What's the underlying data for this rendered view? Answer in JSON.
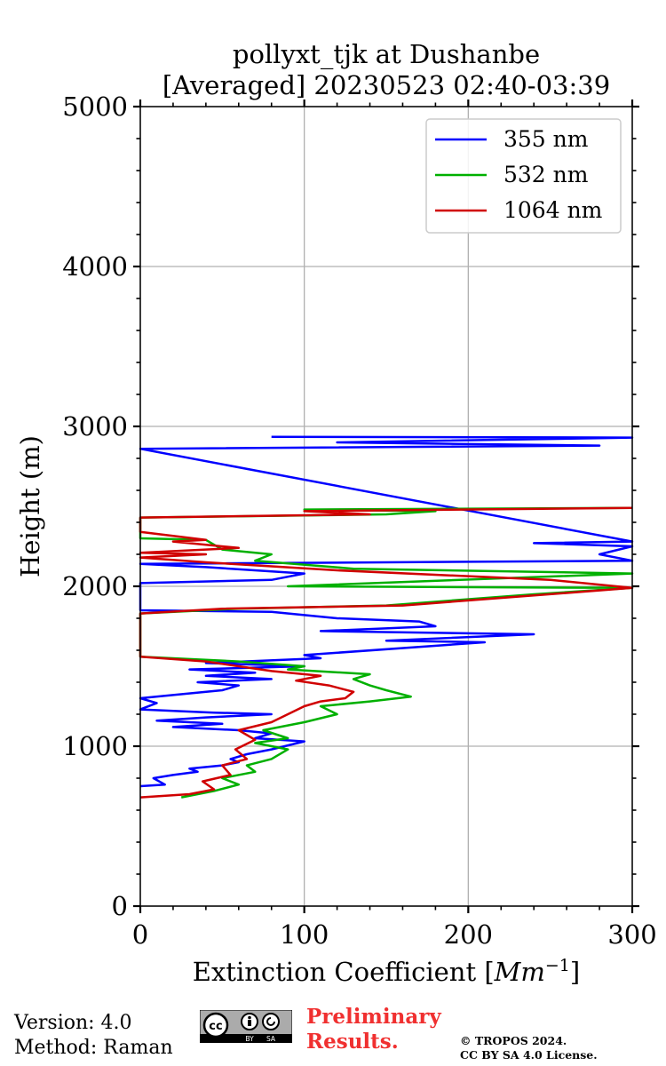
{
  "chart_data": {
    "type": "line",
    "title_line1": "pollyxt_tjk at Dushanbe",
    "title_line2": "[Averaged] 20230523 02:40-03:39",
    "xlabel_prefix": "Extinction Coefficient [",
    "xlabel_unit": "Mm",
    "xlabel_exp": "−1",
    "xlabel_suffix": "]",
    "ylabel": "Height (m)",
    "xlim": [
      0,
      300
    ],
    "ylim": [
      0,
      5000
    ],
    "x_ticks": [
      "0",
      "100",
      "200",
      "300"
    ],
    "y_ticks": [
      "0",
      "1000",
      "2000",
      "3000",
      "4000",
      "5000"
    ],
    "grid": true,
    "legend_position": "top-right",
    "series": [
      {
        "name": "355 nm",
        "color": "#0000ff",
        "points": [
          [
            0,
            750
          ],
          [
            15,
            760
          ],
          [
            8,
            800
          ],
          [
            20,
            820
          ],
          [
            35,
            840
          ],
          [
            30,
            860
          ],
          [
            50,
            880
          ],
          [
            60,
            900
          ],
          [
            55,
            920
          ],
          [
            65,
            950
          ],
          [
            80,
            980
          ],
          [
            100,
            1030
          ],
          [
            70,
            1050
          ],
          [
            80,
            1080
          ],
          [
            60,
            1100
          ],
          [
            20,
            1120
          ],
          [
            50,
            1140
          ],
          [
            10,
            1160
          ],
          [
            40,
            1180
          ],
          [
            80,
            1200
          ],
          [
            45,
            1210
          ],
          [
            0,
            1230
          ],
          [
            10,
            1270
          ],
          [
            0,
            1300
          ],
          [
            20,
            1320
          ],
          [
            50,
            1350
          ],
          [
            60,
            1380
          ],
          [
            35,
            1400
          ],
          [
            80,
            1420
          ],
          [
            40,
            1440
          ],
          [
            70,
            1460
          ],
          [
            30,
            1480
          ],
          [
            100,
            1500
          ],
          [
            40,
            1520
          ],
          [
            110,
            1550
          ],
          [
            100,
            1570
          ],
          [
            210,
            1650
          ],
          [
            150,
            1660
          ],
          [
            240,
            1700
          ],
          [
            110,
            1720
          ],
          [
            180,
            1750
          ],
          [
            170,
            1780
          ],
          [
            120,
            1800
          ],
          [
            80,
            1840
          ],
          [
            0,
            1850
          ],
          [
            0,
            2020
          ],
          [
            80,
            2040
          ],
          [
            100,
            2080
          ],
          [
            40,
            2120
          ],
          [
            0,
            2140
          ],
          [
            300,
            2160
          ],
          [
            280,
            2200
          ],
          [
            300,
            2250
          ],
          [
            240,
            2270
          ],
          [
            300,
            2280
          ],
          [
            0,
            2860
          ],
          [
            280,
            2880
          ],
          [
            120,
            2900
          ],
          [
            300,
            2930
          ],
          [
            80,
            2935
          ]
        ]
      },
      {
        "name": "532 nm",
        "color": "#00b000",
        "points": [
          [
            25,
            680
          ],
          [
            45,
            720
          ],
          [
            60,
            760
          ],
          [
            50,
            800
          ],
          [
            70,
            840
          ],
          [
            65,
            880
          ],
          [
            80,
            920
          ],
          [
            90,
            980
          ],
          [
            70,
            1020
          ],
          [
            90,
            1050
          ],
          [
            75,
            1100
          ],
          [
            100,
            1150
          ],
          [
            120,
            1200
          ],
          [
            110,
            1250
          ],
          [
            140,
            1280
          ],
          [
            165,
            1310
          ],
          [
            150,
            1350
          ],
          [
            140,
            1380
          ],
          [
            130,
            1420
          ],
          [
            140,
            1450
          ],
          [
            90,
            1480
          ],
          [
            100,
            1500
          ],
          [
            60,
            1530
          ],
          [
            0,
            1560
          ],
          [
            0,
            1830
          ],
          [
            60,
            1860
          ],
          [
            150,
            1880
          ],
          [
            240,
            1950
          ],
          [
            300,
            1990
          ],
          [
            90,
            2000
          ],
          [
            300,
            2080
          ],
          [
            130,
            2110
          ],
          [
            70,
            2160
          ],
          [
            80,
            2200
          ],
          [
            50,
            2230
          ],
          [
            40,
            2290
          ],
          [
            0,
            2300
          ],
          [
            0,
            2430
          ],
          [
            150,
            2450
          ],
          [
            180,
            2470
          ],
          [
            100,
            2480
          ],
          [
            300,
            2490
          ]
        ]
      },
      {
        "name": "1064 nm",
        "color": "#d00000",
        "points": [
          [
            0,
            680
          ],
          [
            30,
            700
          ],
          [
            45,
            730
          ],
          [
            38,
            780
          ],
          [
            55,
            820
          ],
          [
            50,
            880
          ],
          [
            65,
            920
          ],
          [
            58,
            980
          ],
          [
            70,
            1040
          ],
          [
            60,
            1100
          ],
          [
            80,
            1150
          ],
          [
            90,
            1200
          ],
          [
            100,
            1250
          ],
          [
            110,
            1280
          ],
          [
            125,
            1300
          ],
          [
            130,
            1340
          ],
          [
            115,
            1380
          ],
          [
            95,
            1410
          ],
          [
            110,
            1440
          ],
          [
            80,
            1470
          ],
          [
            60,
            1500
          ],
          [
            40,
            1530
          ],
          [
            0,
            1560
          ],
          [
            0,
            1830
          ],
          [
            50,
            1860
          ],
          [
            160,
            1880
          ],
          [
            300,
            1990
          ],
          [
            250,
            2040
          ],
          [
            120,
            2100
          ],
          [
            40,
            2150
          ],
          [
            0,
            2180
          ],
          [
            40,
            2200
          ],
          [
            0,
            2210
          ],
          [
            60,
            2240
          ],
          [
            20,
            2280
          ],
          [
            40,
            2290
          ],
          [
            0,
            2340
          ],
          [
            0,
            2430
          ],
          [
            140,
            2450
          ],
          [
            100,
            2470
          ],
          [
            300,
            2490
          ]
        ]
      }
    ]
  },
  "footer": {
    "version_line": "Version: 4.0",
    "method_line": "Method: Raman",
    "preliminary_line1": "Preliminary",
    "preliminary_line2": "Results.",
    "copyright_line1": "© TROPOS 2024.",
    "copyright_line2": "CC BY SA 4.0 License.",
    "cc_by": "BY",
    "cc_sa": "SA",
    "cc_text": "cc"
  }
}
